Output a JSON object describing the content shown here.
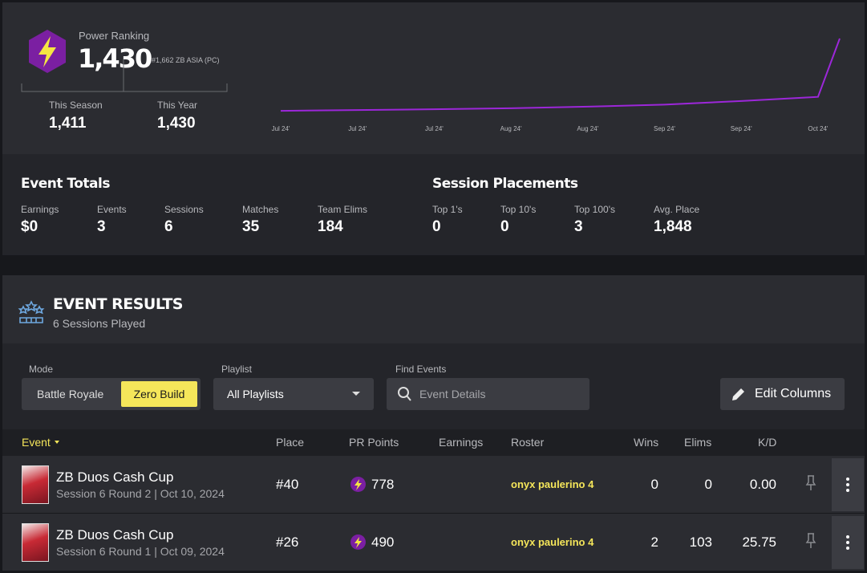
{
  "header": {
    "label": "Power Ranking",
    "value": "1,430",
    "rank": "#1,662 ZB ASIA (PC)",
    "season_label": "This Season",
    "season_value": "1,411",
    "year_label": "This Year",
    "year_value": "1,430"
  },
  "chart_data": {
    "type": "line",
    "x": [
      "Jul 24'",
      "Jul 24'",
      "Jul 24'",
      "Aug 24'",
      "Aug 24'",
      "Sep 24'",
      "Sep 24'",
      "Oct 24'",
      null
    ],
    "values": [
      30,
      45,
      60,
      80,
      110,
      150,
      220,
      300,
      1430
    ],
    "ylim": [
      0,
      1500
    ],
    "color": "#9c27d9"
  },
  "event_totals": {
    "title": "Event Totals",
    "stats": [
      {
        "label": "Earnings",
        "value": "$0"
      },
      {
        "label": "Events",
        "value": "3"
      },
      {
        "label": "Sessions",
        "value": "6"
      },
      {
        "label": "Matches",
        "value": "35"
      },
      {
        "label": "Team Elims",
        "value": "184"
      }
    ]
  },
  "session_placements": {
    "title": "Session Placements",
    "stats": [
      {
        "label": "Top 1's",
        "value": "0"
      },
      {
        "label": "Top 10's",
        "value": "0"
      },
      {
        "label": "Top 100's",
        "value": "3"
      },
      {
        "label": "Avg. Place",
        "value": "1,848"
      }
    ]
  },
  "event_results": {
    "title": "EVENT RESULTS",
    "subtitle": "6 Sessions Played"
  },
  "filters": {
    "mode_label": "Mode",
    "modes": [
      "Battle Royale",
      "Zero Build"
    ],
    "playlist_label": "Playlist",
    "playlist": "All Playlists",
    "find_label": "Find Events",
    "find_placeholder": "Event Details",
    "edit": "Edit Columns"
  },
  "table": {
    "columns": [
      "Event",
      "Place",
      "PR Points",
      "Earnings",
      "Roster",
      "Wins",
      "Elims",
      "K/D"
    ],
    "rows": [
      {
        "name": "ZB Duos Cash Cup",
        "session": "Session 6 Round 2 | Oct 10, 2024",
        "place": "#40",
        "pr": "778",
        "roster": "onyx paulerino 4",
        "wins": "0",
        "elims": "0",
        "kd": "0.00"
      },
      {
        "name": "ZB Duos Cash Cup",
        "session": "Session 6 Round 1 | Oct 09, 2024",
        "place": "#26",
        "pr": "490",
        "roster": "onyx paulerino 4",
        "wins": "2",
        "elims": "103",
        "kd": "25.75"
      }
    ]
  }
}
